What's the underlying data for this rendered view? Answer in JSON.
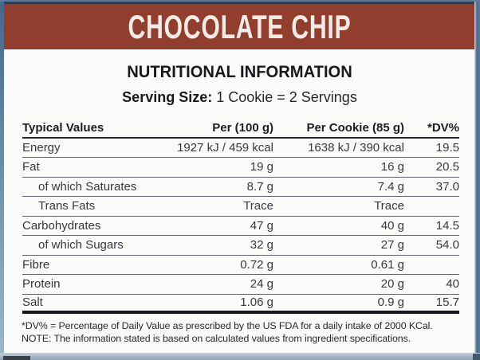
{
  "header": {
    "title": "CHOCOLATE CHIP"
  },
  "label": {
    "section_title": "NUTRITIONAL INFORMATION",
    "serving": {
      "label": "Serving Size:",
      "value": "1 Cookie = 2 Servings"
    }
  },
  "table": {
    "columns": [
      "Typical Values",
      "Per (100 g)",
      "Per Cookie (85 g)",
      "*DV%"
    ],
    "rows": [
      {
        "name": "Energy",
        "indent": false,
        "per100": "1927 kJ / 459 kcal",
        "perCookie": "1638 kJ / 390 kcal",
        "dv": "19.5"
      },
      {
        "name": "Fat",
        "indent": false,
        "per100": "19 g",
        "perCookie": "16 g",
        "dv": "20.5"
      },
      {
        "name": "of which Saturates",
        "indent": true,
        "per100": "8.7 g",
        "perCookie": "7.4 g",
        "dv": "37.0"
      },
      {
        "name": "Trans Fats",
        "indent": true,
        "per100": "Trace",
        "perCookie": "Trace",
        "dv": ""
      },
      {
        "name": "Carbohydrates",
        "indent": false,
        "per100": "47 g",
        "perCookie": "40 g",
        "dv": "14.5"
      },
      {
        "name": "of which Sugars",
        "indent": true,
        "per100": "32 g",
        "perCookie": "27 g",
        "dv": "54.0"
      },
      {
        "name": "Fibre",
        "indent": false,
        "per100": "0.72 g",
        "perCookie": "0.61 g",
        "dv": ""
      },
      {
        "name": "Protein",
        "indent": false,
        "per100": "24 g",
        "perCookie": "20 g",
        "dv": "40"
      },
      {
        "name": "Salt",
        "indent": false,
        "per100": "1.06 g",
        "perCookie": "0.9 g",
        "dv": "15.7"
      }
    ]
  },
  "footnotes": [
    "*DV% = Percentage of Daily Value as prescribed by the US FDA for a daily intake of 2000 KCal.",
    "NOTE: The information stated is based on calculated values from ingredient specifications."
  ],
  "colors": {
    "title_bar_bg": "#913e2f",
    "title_text": "#f3ece6",
    "photo_edge_blue": "#47688a"
  }
}
